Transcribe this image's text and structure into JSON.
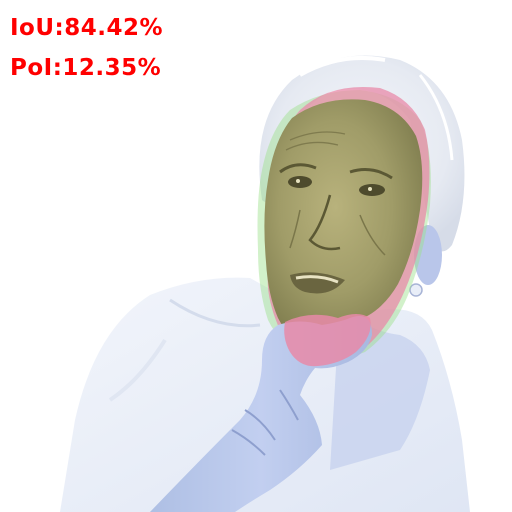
{
  "overlay": {
    "iou_text": "IoU:84.42%",
    "pol_text": "PoI:12.35%",
    "text_color": "#ff0000"
  },
  "image": {
    "subject": "elderly woman with white hair, hand on chin, looking up thoughtfully",
    "mask_colors": {
      "prediction_overlap": "#8f9060",
      "false_positive": "#e88aa8",
      "false_negative_edge": "#9be08a",
      "desaturated_background": "#c9d4f0"
    }
  }
}
